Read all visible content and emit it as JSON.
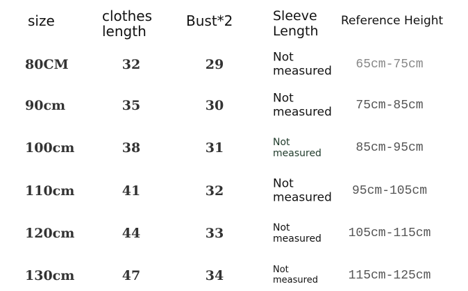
{
  "headers": {
    "size": "size",
    "clothes_length_1": "clothes",
    "clothes_length_2": "length",
    "bust": "Bust*2",
    "sleeve_1": "Sleeve",
    "sleeve_2": "Length",
    "reference_height": "Reference Height"
  },
  "rows": [
    {
      "size": "80CM",
      "length": "32",
      "bust": "29",
      "sleeve_1": "Not",
      "sleeve_2": "measured",
      "height": "65cm-75cm"
    },
    {
      "size": "90cm",
      "length": "35",
      "bust": "30",
      "sleeve_1": "Not",
      "sleeve_2": "measured",
      "height": "75cm-85cm"
    },
    {
      "size": "100cm",
      "length": "38",
      "bust": "31",
      "sleeve_1": "Not",
      "sleeve_2": "measured",
      "height": "85cm-95cm"
    },
    {
      "size": "110cm",
      "length": "41",
      "bust": "32",
      "sleeve_1": "Not",
      "sleeve_2": "measured",
      "height": "95cm-105cm"
    },
    {
      "size": "120cm",
      "length": "44",
      "bust": "33",
      "sleeve_1": "Not",
      "sleeve_2": "measured",
      "height": "105cm-115cm"
    },
    {
      "size": "130cm",
      "length": "47",
      "bust": "34",
      "sleeve_1": "Not",
      "sleeve_2": "measured",
      "height": "115cm-125cm"
    }
  ]
}
